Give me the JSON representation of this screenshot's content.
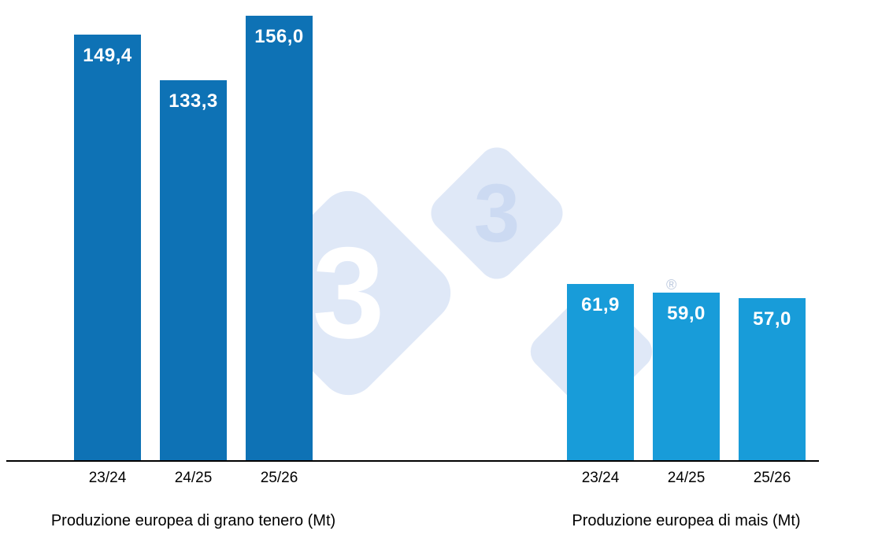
{
  "watermark": {
    "glyph": "3",
    "registered_symbol": "®",
    "diamond_color": "#dfe8f7",
    "glyph_color_white": "#ffffff",
    "glyph_color_blue": "#ccdaf2",
    "registered_color": "#bcc9de"
  },
  "axis": {
    "color": "#000000"
  },
  "chart_data": [
    {
      "type": "bar",
      "title": "Produzione europea di grano tenero (Mt)",
      "categories": [
        "23/24",
        "24/25",
        "25/26"
      ],
      "values": [
        149.4,
        133.3,
        156.0
      ],
      "value_labels": [
        "149,4",
        "133,3",
        "156,0"
      ],
      "bar_color": "#0e72b5",
      "value_label_color": "#ffffff",
      "xlabel": "",
      "ylabel": "",
      "ylim": [
        0,
        160
      ],
      "grid": false,
      "legend": "none"
    },
    {
      "type": "bar",
      "title": "Produzione europea di mais (Mt)",
      "categories": [
        "23/24",
        "24/25",
        "25/26"
      ],
      "values": [
        61.9,
        59.0,
        57.0
      ],
      "value_labels": [
        "61,9",
        "59,0",
        "57,0"
      ],
      "bar_color": "#189cd9",
      "value_label_color": "#ffffff",
      "xlabel": "",
      "ylabel": "",
      "ylim": [
        0,
        160
      ],
      "grid": false,
      "legend": "none"
    }
  ]
}
